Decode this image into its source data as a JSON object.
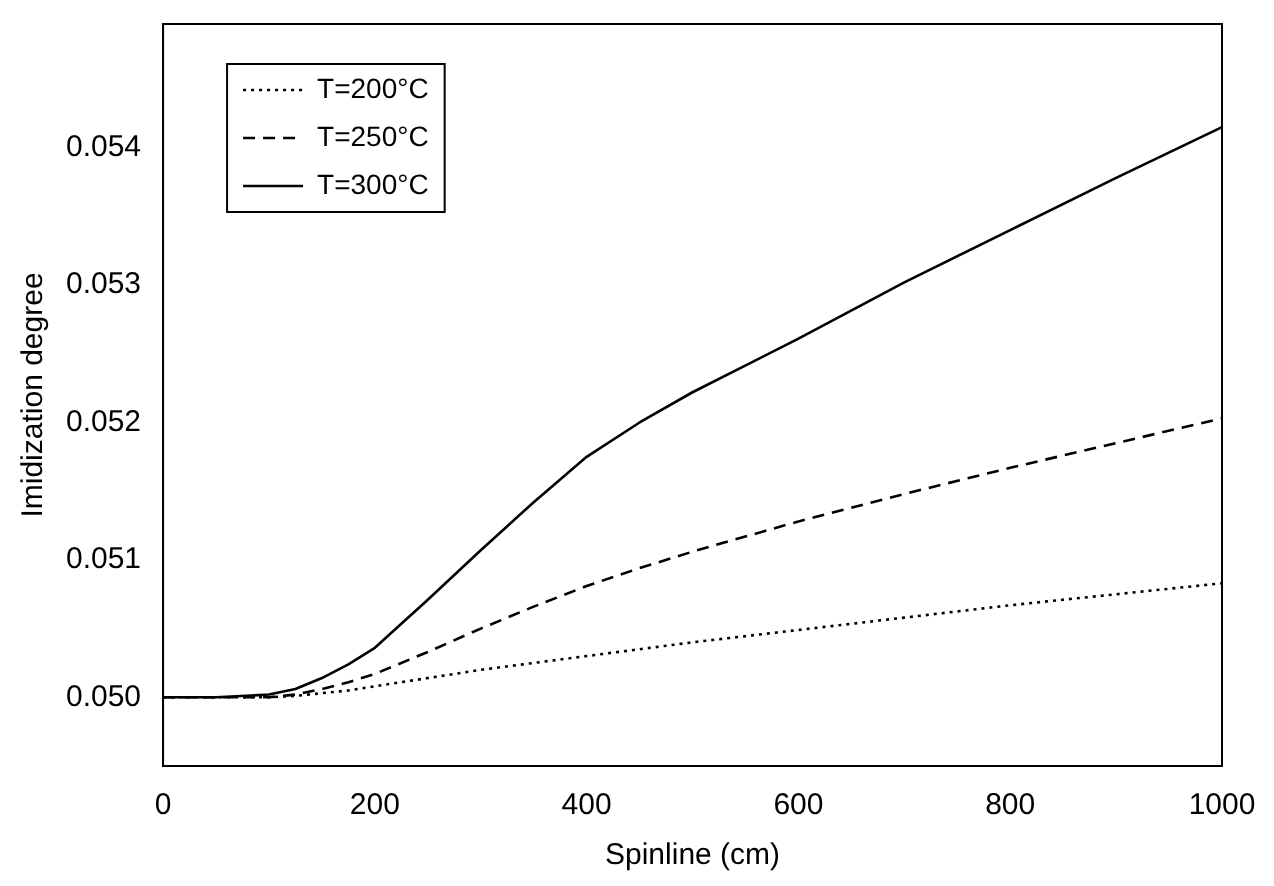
{
  "chart_data": {
    "type": "line",
    "xlabel": "Spinline (cm)",
    "ylabel": "Imidization degree",
    "x": [
      0,
      50,
      100,
      125,
      150,
      175,
      200,
      250,
      300,
      350,
      400,
      450,
      500,
      600,
      700,
      800,
      900,
      1000
    ],
    "series": [
      {
        "name": "T=200°C",
        "color": "#000000",
        "line_style": "dotted",
        "values": [
          0.05,
          0.05,
          0.05,
          0.05001,
          0.05003,
          0.05005,
          0.05008,
          0.05014,
          0.0502,
          0.05025,
          0.0503,
          0.05035,
          0.0504,
          0.05049,
          0.05058,
          0.05067,
          0.05075,
          0.05083
        ]
      },
      {
        "name": "T=250°C",
        "color": "#000000",
        "line_style": "dashed",
        "values": [
          0.05,
          0.05,
          0.05,
          0.05002,
          0.05006,
          0.05011,
          0.05017,
          0.05033,
          0.0505,
          0.05066,
          0.05081,
          0.05094,
          0.05106,
          0.05128,
          0.05148,
          0.05167,
          0.05185,
          0.05203
        ]
      },
      {
        "name": "T=300°C",
        "color": "#000000",
        "line_style": "solid",
        "values": [
          0.05,
          0.05,
          0.05002,
          0.05006,
          0.05014,
          0.05024,
          0.05036,
          0.05071,
          0.05107,
          0.05142,
          0.05175,
          0.052,
          0.05222,
          0.05261,
          0.05302,
          0.0534,
          0.05378,
          0.05415
        ]
      }
    ],
    "xlim": [
      0,
      1000
    ],
    "xticks": [
      0,
      200,
      400,
      600,
      800,
      1000
    ],
    "ylim": [
      0.0495,
      0.0549
    ],
    "yticks": [
      {
        "value": 0.05,
        "label": "0.050"
      },
      {
        "value": 0.051,
        "label": "0.051"
      },
      {
        "value": 0.052,
        "label": "0.052"
      },
      {
        "value": 0.053,
        "label": "0.053"
      },
      {
        "value": 0.054,
        "label": "0.054"
      }
    ],
    "grid": false,
    "legend": "top left",
    "marker": "none"
  }
}
